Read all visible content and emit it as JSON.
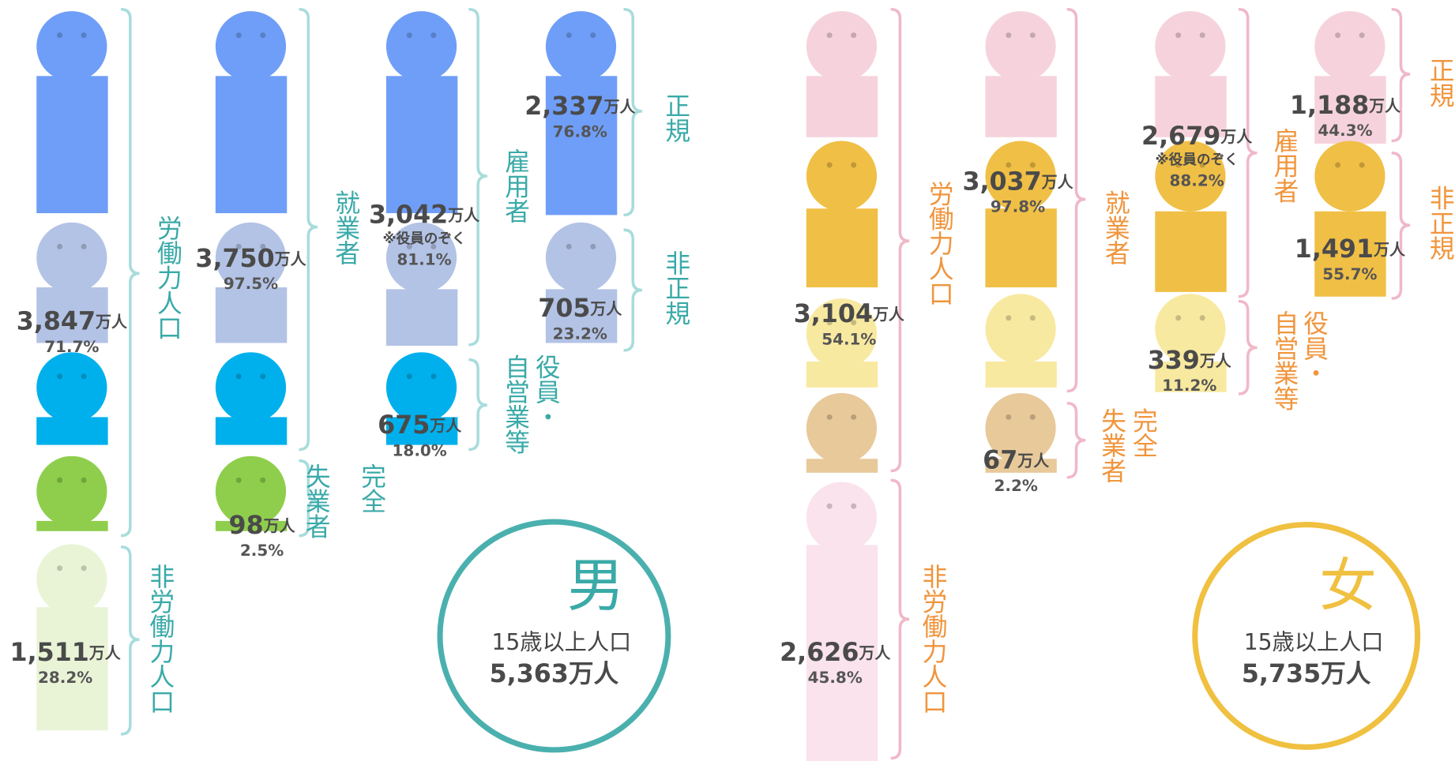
{
  "male": {
    "sex": "男",
    "total_label": "15歳以上人口",
    "total": {
      "value": "5,363",
      "unit": "万人"
    },
    "groups": [
      {
        "lines": [
          "労働力人口"
        ]
      },
      {
        "lines": [
          "非労働力人口"
        ]
      },
      {
        "lines": [
          "就業者"
        ]
      },
      {
        "lines": [
          "完全",
          "失業者"
        ]
      },
      {
        "lines": [
          "雇用者"
        ]
      },
      {
        "lines": [
          "役員・",
          "自営業等"
        ]
      },
      {
        "lines": [
          "正規"
        ]
      },
      {
        "lines": [
          "非正規"
        ]
      }
    ],
    "counts": [
      {
        "value": "3,847",
        "unit": "万人",
        "pct": "71.7%"
      },
      {
        "value": "1,511",
        "unit": "万人",
        "pct": "28.2%"
      },
      {
        "value": "3,750",
        "unit": "万人",
        "pct": "97.5%"
      },
      {
        "value": "98",
        "unit": "万人",
        "pct": "2.5%"
      },
      {
        "value": "3,042",
        "unit": "万人",
        "note": "※役員のぞく",
        "pct": "81.1%"
      },
      {
        "value": "675",
        "unit": "万人",
        "pct": "18.0%"
      },
      {
        "value": "2,337",
        "unit": "万人",
        "pct": "76.8%"
      },
      {
        "value": "705",
        "unit": "万人",
        "pct": "23.2%"
      }
    ]
  },
  "female": {
    "sex": "女",
    "total_label": "15歳以上人口",
    "total": {
      "value": "5,735",
      "unit": "万人"
    },
    "groups": [
      {
        "lines": [
          "労働力人口"
        ]
      },
      {
        "lines": [
          "非労働力人口"
        ]
      },
      {
        "lines": [
          "就業者"
        ]
      },
      {
        "lines": [
          "完全",
          "失業者"
        ]
      },
      {
        "lines": [
          "雇用者"
        ]
      },
      {
        "lines": [
          "役員・",
          "自営業等"
        ]
      },
      {
        "lines": [
          "正規"
        ]
      },
      {
        "lines": [
          "非正規"
        ]
      }
    ],
    "counts": [
      {
        "value": "3,104",
        "unit": "万人",
        "pct": "54.1%"
      },
      {
        "value": "2,626",
        "unit": "万人",
        "pct": "45.8%"
      },
      {
        "value": "3,037",
        "unit": "万人",
        "pct": "97.8%"
      },
      {
        "value": "67",
        "unit": "万人",
        "pct": "2.2%"
      },
      {
        "value": "2,679",
        "unit": "万人",
        "note": "※役員のぞく",
        "pct": "88.2%"
      },
      {
        "value": "339",
        "unit": "万人",
        "pct": "11.2%"
      },
      {
        "value": "1,188",
        "unit": "万人",
        "pct": "44.3%"
      },
      {
        "value": "1,491",
        "unit": "万人",
        "pct": "55.7%"
      }
    ]
  }
}
